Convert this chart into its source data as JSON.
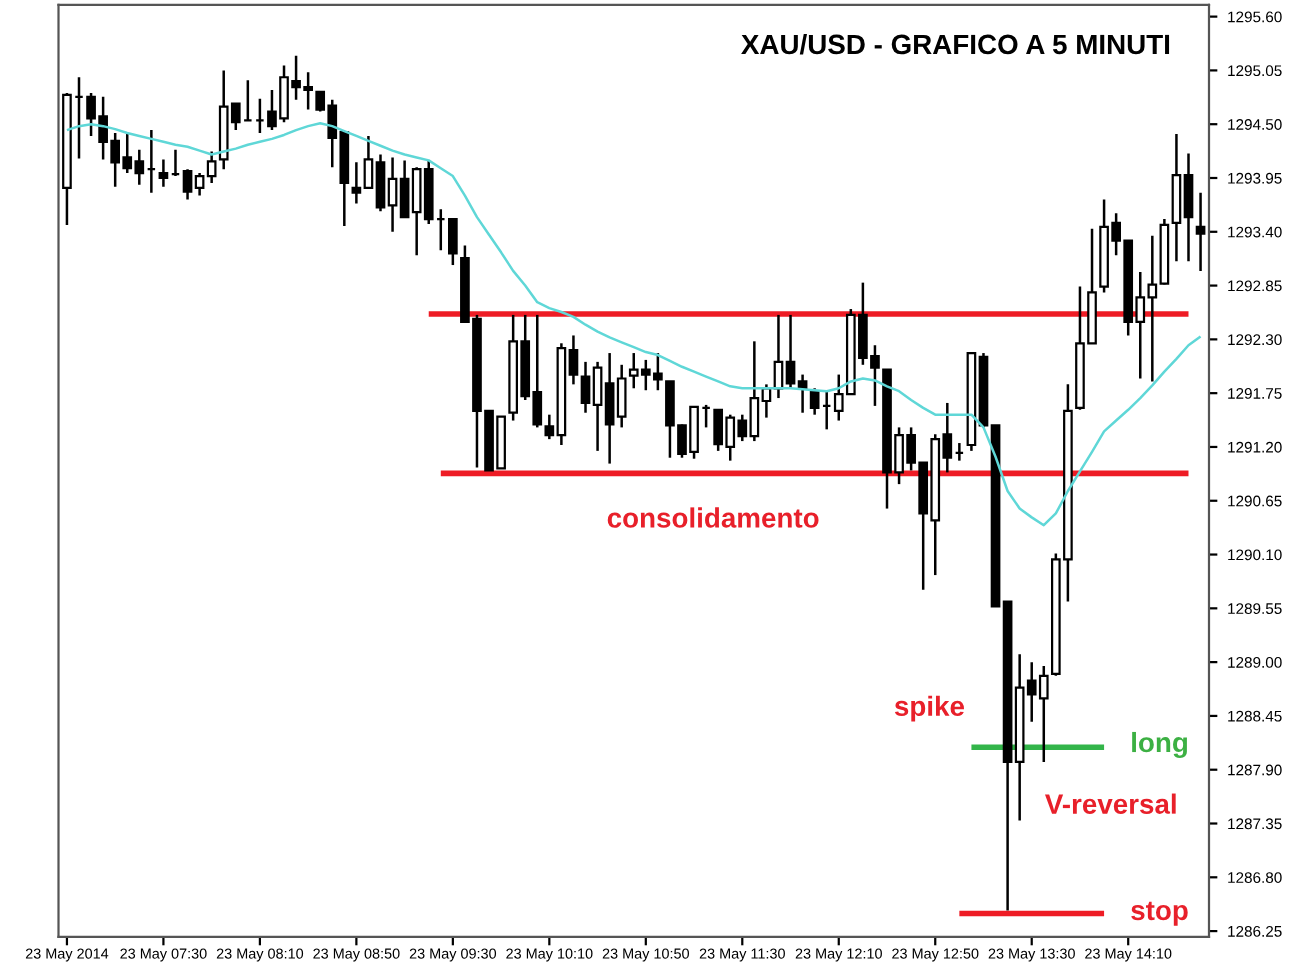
{
  "chart_data": {
    "type": "candlestick",
    "title": "XAU/USD - GRAFICO A 5 MINUTI",
    "categories": [
      "23 May 2014",
      null,
      null,
      null,
      null,
      null,
      null,
      null,
      "23 May 07:30",
      null,
      null,
      null,
      null,
      null,
      null,
      null,
      "23 May 08:10",
      null,
      null,
      null,
      null,
      null,
      null,
      null,
      "23 May 08:50",
      null,
      null,
      null,
      null,
      null,
      null,
      null,
      "23 May 09:30",
      null,
      null,
      null,
      null,
      null,
      null,
      null,
      "23 May 10:10",
      null,
      null,
      null,
      null,
      null,
      null,
      null,
      "23 May 10:50",
      null,
      null,
      null,
      null,
      null,
      null,
      null,
      "23 May 11:30",
      null,
      null,
      null,
      null,
      null,
      null,
      null,
      "23 May 12:10",
      null,
      null,
      null,
      null,
      null,
      null,
      null,
      "23 May 12:50",
      null,
      null,
      null,
      null,
      null,
      null,
      null,
      "23 May 13:30",
      null,
      null,
      null,
      null,
      null,
      null,
      null,
      "23 May 14:10",
      null,
      null,
      null,
      null,
      null,
      null
    ],
    "ohlc": [
      [
        1293.85,
        1294.82,
        1293.47,
        1294.8
      ],
      [
        1294.78,
        1294.98,
        1294.15,
        1294.78
      ],
      [
        1294.78,
        1294.82,
        1294.38,
        1294.56
      ],
      [
        1294.58,
        1294.78,
        1294.14,
        1294.32
      ],
      [
        1294.33,
        1294.41,
        1293.86,
        1294.11
      ],
      [
        1294.16,
        1294.41,
        1294.0,
        1294.05
      ],
      [
        1294.12,
        1294.24,
        1293.88,
        1294.0
      ],
      [
        1294.04,
        1294.44,
        1293.8,
        1294.04
      ],
      [
        1294.0,
        1294.14,
        1293.86,
        1293.95
      ],
      [
        1293.99,
        1294.24,
        1293.97,
        1293.99
      ],
      [
        1294.02,
        1294.04,
        1293.73,
        1293.81
      ],
      [
        1293.85,
        1294.0,
        1293.77,
        1293.97
      ],
      [
        1293.97,
        1294.22,
        1293.9,
        1294.12
      ],
      [
        1294.14,
        1295.05,
        1294.04,
        1294.68
      ],
      [
        1294.71,
        1294.71,
        1294.44,
        1294.52
      ],
      [
        1294.54,
        1294.95,
        1294.54,
        1294.54
      ],
      [
        1294.54,
        1294.76,
        1294.41,
        1294.54
      ],
      [
        1294.63,
        1294.85,
        1294.44,
        1294.48
      ],
      [
        1294.56,
        1295.1,
        1294.52,
        1294.98
      ],
      [
        1294.94,
        1295.2,
        1294.75,
        1294.88
      ],
      [
        1294.88,
        1295.03,
        1294.65,
        1294.85
      ],
      [
        1294.83,
        1294.83,
        1294.63,
        1294.65
      ],
      [
        1294.69,
        1294.75,
        1294.06,
        1294.36
      ],
      [
        1294.42,
        1294.42,
        1293.46,
        1293.9
      ],
      [
        1293.85,
        1294.11,
        1293.69,
        1293.8
      ],
      [
        1293.85,
        1294.38,
        1293.84,
        1294.14
      ],
      [
        1294.11,
        1294.19,
        1293.61,
        1293.65
      ],
      [
        1293.67,
        1294.16,
        1293.4,
        1293.94
      ],
      [
        1293.94,
        1294.13,
        1293.55,
        1293.55
      ],
      [
        1293.6,
        1294.06,
        1293.16,
        1294.04
      ],
      [
        1294.04,
        1294.13,
        1293.48,
        1293.53
      ],
      [
        1293.53,
        1293.63,
        1293.21,
        1293.53
      ],
      [
        1293.53,
        1293.53,
        1293.06,
        1293.18
      ],
      [
        1293.13,
        1293.26,
        1292.48,
        1292.48
      ],
      [
        1292.51,
        1292.55,
        1290.99,
        1291.57
      ],
      [
        1291.57,
        1291.57,
        1290.96,
        1290.96
      ],
      [
        1290.98,
        1291.51,
        1290.98,
        1291.51
      ],
      [
        1291.55,
        1292.55,
        1291.47,
        1292.28
      ],
      [
        1292.28,
        1292.55,
        1291.68,
        1291.72
      ],
      [
        1291.76,
        1292.55,
        1291.4,
        1291.43
      ],
      [
        1291.41,
        1291.53,
        1291.28,
        1291.32
      ],
      [
        1291.32,
        1292.26,
        1291.22,
        1292.21
      ],
      [
        1292.19,
        1292.34,
        1291.84,
        1291.94
      ],
      [
        1291.92,
        1292.07,
        1291.55,
        1291.65
      ],
      [
        1291.63,
        1292.07,
        1291.16,
        1292.01
      ],
      [
        1291.85,
        1292.16,
        1291.03,
        1291.43
      ],
      [
        1291.51,
        1292.04,
        1291.4,
        1291.9
      ],
      [
        1291.93,
        1292.16,
        1291.8,
        1291.99
      ],
      [
        1291.99,
        1292.09,
        1291.78,
        1291.94
      ],
      [
        1291.95,
        1292.16,
        1291.78,
        1291.89
      ],
      [
        1291.87,
        1291.87,
        1291.09,
        1291.42
      ],
      [
        1291.42,
        1291.43,
        1291.09,
        1291.13
      ],
      [
        1291.15,
        1291.61,
        1291.08,
        1291.61
      ],
      [
        1291.6,
        1291.63,
        1291.4,
        1291.6
      ],
      [
        1291.58,
        1291.58,
        1291.16,
        1291.23
      ],
      [
        1291.2,
        1291.53,
        1291.06,
        1291.5
      ],
      [
        1291.47,
        1291.53,
        1291.26,
        1291.31
      ],
      [
        1291.31,
        1292.28,
        1291.26,
        1291.7
      ],
      [
        1291.67,
        1291.84,
        1291.5,
        1291.8
      ],
      [
        1291.8,
        1292.55,
        1291.7,
        1292.07
      ],
      [
        1292.07,
        1292.55,
        1291.8,
        1291.85
      ],
      [
        1291.87,
        1291.94,
        1291.55,
        1291.8
      ],
      [
        1291.77,
        1291.8,
        1291.53,
        1291.6
      ],
      [
        1291.62,
        1291.77,
        1291.38,
        1291.62
      ],
      [
        1291.57,
        1291.94,
        1291.47,
        1291.74
      ],
      [
        1291.74,
        1292.61,
        1291.74,
        1292.55
      ],
      [
        1292.55,
        1292.88,
        1292.04,
        1292.11
      ],
      [
        1292.13,
        1292.24,
        1291.62,
        1292.01
      ],
      [
        1291.99,
        1291.99,
        1290.57,
        1290.94
      ],
      [
        1290.94,
        1291.4,
        1290.82,
        1291.32
      ],
      [
        1291.32,
        1291.4,
        1290.96,
        1291.04
      ],
      [
        1291.04,
        1291.04,
        1289.74,
        1290.52
      ],
      [
        1290.45,
        1291.33,
        1289.89,
        1291.28
      ],
      [
        1291.33,
        1291.65,
        1290.94,
        1291.09
      ],
      [
        1291.14,
        1291.24,
        1291.06,
        1291.14
      ],
      [
        1291.22,
        1292.16,
        1291.16,
        1292.16
      ],
      [
        1292.12,
        1292.16,
        1291.4,
        1291.42
      ],
      [
        1291.42,
        1291.42,
        1289.57,
        1289.57
      ],
      [
        1289.62,
        1289.62,
        1286.46,
        1287.98
      ],
      [
        1287.98,
        1289.08,
        1287.38,
        1288.74
      ],
      [
        1288.81,
        1289.0,
        1288.39,
        1288.67
      ],
      [
        1288.63,
        1288.96,
        1287.98,
        1288.86
      ],
      [
        1288.88,
        1290.11,
        1288.86,
        1290.05
      ],
      [
        1290.05,
        1291.84,
        1289.62,
        1291.57
      ],
      [
        1291.6,
        1292.84,
        1291.58,
        1292.26
      ],
      [
        1292.26,
        1293.43,
        1292.26,
        1292.78
      ],
      [
        1292.84,
        1293.73,
        1292.78,
        1293.45
      ],
      [
        1293.49,
        1293.59,
        1293.16,
        1293.31
      ],
      [
        1293.31,
        1293.31,
        1292.34,
        1292.48
      ],
      [
        1292.48,
        1292.99,
        1291.9,
        1292.73
      ],
      [
        1292.73,
        1293.36,
        1291.87,
        1292.86
      ],
      [
        1292.87,
        1293.53,
        1292.86,
        1293.47
      ],
      [
        1293.49,
        1294.4,
        1293.1,
        1293.98
      ],
      [
        1293.98,
        1294.2,
        1293.1,
        1293.55
      ],
      [
        1293.45,
        1293.8,
        1293.0,
        1293.38
      ]
    ],
    "series": [
      {
        "type": "line",
        "color": "#5fd7d7",
        "values": [
          1294.44,
          1294.48,
          1294.5,
          1294.48,
          1294.45,
          1294.41,
          1294.38,
          1294.35,
          1294.32,
          1294.29,
          1294.27,
          1294.23,
          1294.19,
          1294.22,
          1294.25,
          1294.29,
          1294.32,
          1294.35,
          1294.39,
          1294.44,
          1294.48,
          1294.51,
          1294.48,
          1294.43,
          1294.38,
          1294.33,
          1294.28,
          1294.23,
          1294.19,
          1294.16,
          1294.13,
          1294.05,
          1293.97,
          1293.77,
          1293.55,
          1293.37,
          1293.19,
          1293.0,
          1292.85,
          1292.68,
          1292.62,
          1292.58,
          1292.53,
          1292.45,
          1292.38,
          1292.32,
          1292.27,
          1292.22,
          1292.17,
          1292.14,
          1292.08,
          1292.02,
          1291.97,
          1291.92,
          1291.87,
          1291.82,
          1291.8,
          1291.8,
          1291.8,
          1291.8,
          1291.8,
          1291.79,
          1291.78,
          1291.77,
          1291.8,
          1291.87,
          1291.9,
          1291.88,
          1291.82,
          1291.77,
          1291.68,
          1291.6,
          1291.53,
          1291.53,
          1291.53,
          1291.53,
          1291.4,
          1291.1,
          1290.75,
          1290.57,
          1290.48,
          1290.4,
          1290.52,
          1290.75,
          1290.95,
          1291.15,
          1291.36,
          1291.47,
          1291.58,
          1291.7,
          1291.83,
          1291.97,
          1292.1,
          1292.24,
          1292.33
        ]
      },
      {
        "type": "line",
        "color": "#ee1c25",
        "values": [
          null,
          null,
          null,
          null,
          null,
          null,
          null,
          null,
          null,
          null,
          null,
          null,
          null,
          null,
          null,
          null,
          null,
          null,
          null,
          null,
          null,
          null,
          null,
          null,
          null,
          null,
          null,
          null,
          null,
          null,
          1292.56,
          1292.56,
          1292.56,
          1292.56,
          1292.56,
          1292.56,
          1292.56,
          1292.56,
          1292.56,
          1292.56,
          1292.56,
          1292.56,
          1292.56,
          1292.56,
          1292.56,
          1292.56,
          1292.56,
          1292.56,
          1292.56,
          1292.56,
          1292.56,
          1292.56,
          1292.56,
          1292.56,
          1292.56,
          1292.56,
          1292.56,
          1292.56,
          1292.56,
          1292.56,
          1292.56,
          1292.56,
          1292.56,
          1292.56,
          1292.56,
          1292.56,
          1292.56,
          1292.56,
          1292.56,
          1292.56,
          1292.56,
          1292.56,
          1292.56,
          1292.56,
          1292.56,
          1292.56,
          1292.56,
          1292.56,
          1292.56,
          1292.56,
          1292.56,
          1292.56,
          1292.56,
          1292.56,
          1292.56,
          1292.56,
          1292.56,
          1292.56,
          1292.56,
          1292.56,
          1292.56,
          1292.56,
          1292.56,
          1292.56,
          null
        ]
      },
      {
        "type": "line",
        "color": "#ee1c25",
        "values": [
          null,
          null,
          null,
          null,
          null,
          null,
          null,
          null,
          null,
          null,
          null,
          null,
          null,
          null,
          null,
          null,
          null,
          null,
          null,
          null,
          null,
          null,
          null,
          null,
          null,
          null,
          null,
          null,
          null,
          null,
          null,
          1290.93,
          1290.93,
          1290.93,
          1290.93,
          1290.93,
          1290.93,
          1290.93,
          1290.93,
          1290.93,
          1290.93,
          1290.93,
          1290.93,
          1290.93,
          1290.93,
          1290.93,
          1290.93,
          1290.93,
          1290.93,
          1290.93,
          1290.93,
          1290.93,
          1290.93,
          1290.93,
          1290.93,
          1290.93,
          1290.93,
          1290.93,
          1290.93,
          1290.93,
          1290.93,
          1290.93,
          1290.93,
          1290.93,
          1290.93,
          1290.93,
          1290.93,
          1290.93,
          1290.93,
          1290.93,
          1290.93,
          1290.93,
          1290.93,
          1290.93,
          1290.93,
          1290.93,
          1290.93,
          1290.93,
          1290.93,
          1290.93,
          1290.93,
          1290.93,
          1290.93,
          1290.93,
          1290.93,
          1290.93,
          1290.93,
          1290.93,
          1290.93,
          1290.93,
          1290.93,
          1290.93,
          1290.93,
          1290.93,
          null
        ]
      },
      {
        "type": "line",
        "color": "#33b54a",
        "values": [
          null,
          null,
          null,
          null,
          null,
          null,
          null,
          null,
          null,
          null,
          null,
          null,
          null,
          null,
          null,
          null,
          null,
          null,
          null,
          null,
          null,
          null,
          null,
          null,
          null,
          null,
          null,
          null,
          null,
          null,
          null,
          null,
          null,
          null,
          null,
          null,
          null,
          null,
          null,
          null,
          null,
          null,
          null,
          null,
          null,
          null,
          null,
          null,
          null,
          null,
          null,
          null,
          null,
          null,
          null,
          null,
          null,
          null,
          null,
          null,
          null,
          null,
          null,
          null,
          null,
          null,
          null,
          null,
          null,
          null,
          null,
          null,
          null,
          null,
          null,
          1288.13,
          1288.13,
          1288.13,
          1288.13,
          1288.13,
          1288.13,
          1288.13,
          1288.13,
          1288.13,
          1288.13,
          1288.13,
          1288.13,
          null,
          null,
          null,
          null,
          null,
          null,
          null,
          null
        ]
      },
      {
        "type": "line",
        "color": "#ee1c25",
        "values": [
          null,
          null,
          null,
          null,
          null,
          null,
          null,
          null,
          null,
          null,
          null,
          null,
          null,
          null,
          null,
          null,
          null,
          null,
          null,
          null,
          null,
          null,
          null,
          null,
          null,
          null,
          null,
          null,
          null,
          null,
          null,
          null,
          null,
          null,
          null,
          null,
          null,
          null,
          null,
          null,
          null,
          null,
          null,
          null,
          null,
          null,
          null,
          null,
          null,
          null,
          null,
          null,
          null,
          null,
          null,
          null,
          null,
          null,
          null,
          null,
          null,
          null,
          null,
          null,
          null,
          null,
          null,
          null,
          null,
          null,
          null,
          null,
          null,
          null,
          1286.43,
          1286.43,
          1286.43,
          1286.43,
          1286.43,
          1286.43,
          1286.43,
          1286.43,
          1286.43,
          1286.43,
          1286.43,
          1286.43,
          1286.43,
          null,
          null,
          null,
          null,
          null,
          null,
          null,
          null
        ]
      }
    ],
    "annotations": [
      "consolidamento",
      "spike",
      "long",
      "V-reversal",
      "stop"
    ],
    "ylim": [
      1286.19,
      1295.72
    ],
    "yticks": [
      {
        "value": 1286.25,
        "label": "1286.25"
      },
      {
        "value": 1286.8,
        "label": "1286.80"
      },
      {
        "value": 1287.35,
        "label": "1287.35"
      },
      {
        "value": 1287.9,
        "label": "1287.90"
      },
      {
        "value": 1288.45,
        "label": "1288.45"
      },
      {
        "value": 1289.0,
        "label": "1289.00"
      },
      {
        "value": 1289.55,
        "label": "1289.55"
      },
      {
        "value": 1290.1,
        "label": "1290.10"
      },
      {
        "value": 1290.65,
        "label": "1290.65"
      },
      {
        "value": 1291.2,
        "label": "1291.20"
      },
      {
        "value": 1291.75,
        "label": "1291.75"
      },
      {
        "value": 1292.3,
        "label": "1292.30"
      },
      {
        "value": 1292.85,
        "label": "1292.85"
      },
      {
        "value": 1293.4,
        "label": "1293.40"
      },
      {
        "value": 1293.95,
        "label": "1293.95"
      },
      {
        "value": 1294.5,
        "label": "1294.50"
      },
      {
        "value": 1295.05,
        "label": "1295.05"
      },
      {
        "value": 1295.6,
        "label": "1295.60"
      }
    ],
    "grid": false
  }
}
